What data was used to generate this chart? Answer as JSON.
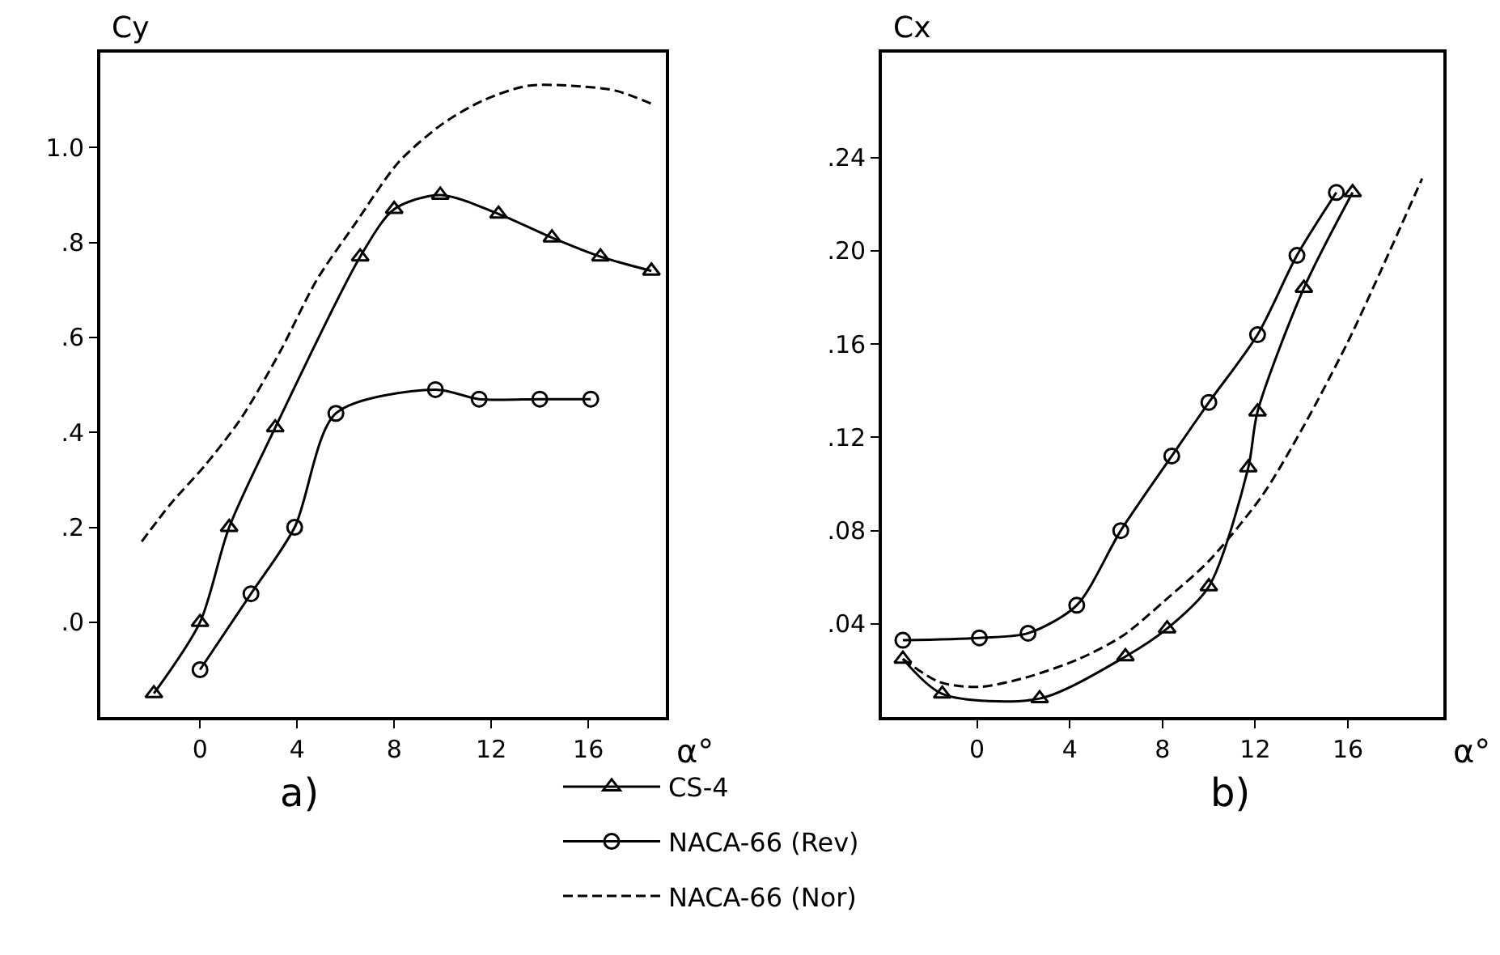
{
  "chart_data": [
    {
      "type": "line",
      "ylabel": "Cy",
      "xlabel": "α°",
      "annotations": [
        "a)"
      ],
      "legend": "bottom",
      "xlim": [
        -4.1,
        19.2
      ],
      "ylim": [
        -0.2,
        1.2
      ],
      "xticks": [
        0,
        4,
        8,
        12,
        16
      ],
      "yticks": [
        {
          "value": 0,
          "label": ".0"
        },
        {
          "value": 0.2,
          "label": ".2"
        },
        {
          "value": 0.4,
          "label": ".4"
        },
        {
          "value": 0.6,
          "label": ".6"
        },
        {
          "value": 0.8,
          "label": ".8"
        },
        {
          "value": 1.0,
          "label": "1.0"
        }
      ],
      "series": [
        {
          "name": "CS-4",
          "color": "#000000",
          "marker": "triangle",
          "line_style": "solid",
          "x": [
            -1.9,
            0,
            1.2,
            3.1,
            6.6,
            8.0,
            9.9,
            12.3,
            14.5,
            16.5,
            18.6
          ],
          "values": [
            -0.15,
            0.0,
            0.2,
            0.41,
            0.77,
            0.87,
            0.9,
            0.86,
            0.81,
            0.77,
            0.74
          ]
        },
        {
          "name": "NACA-66 (Rev)",
          "color": "#000000",
          "marker": "circle",
          "line_style": "solid",
          "x": [
            0,
            2.1,
            3.9,
            5.6,
            9.7,
            11.5,
            14.0,
            16.1
          ],
          "values": [
            -0.1,
            0.06,
            0.2,
            0.44,
            0.49,
            0.47,
            0.47,
            0.47
          ]
        },
        {
          "name": "NACA-66 (Nor)",
          "color": "#000000",
          "marker": "none",
          "line_style": "dashed",
          "x": [
            -2.4,
            -1.2,
            0.2,
            1.7,
            3.3,
            4.8,
            6.4,
            8.2,
            10.0,
            11.7,
            13.5,
            15.3,
            17.1,
            18.7
          ],
          "values": [
            0.17,
            0.25,
            0.33,
            0.43,
            0.57,
            0.72,
            0.84,
            0.97,
            1.05,
            1.1,
            1.13,
            1.13,
            1.12,
            1.09
          ]
        }
      ]
    },
    {
      "type": "line",
      "ylabel": "Cx",
      "xlabel": "α°",
      "annotations": [
        "b)"
      ],
      "legend": "bottom",
      "xlim": [
        -4.1,
        20.1
      ],
      "ylim": [
        0,
        0.285
      ],
      "xticks": [
        0,
        4,
        8,
        12,
        16
      ],
      "yticks": [
        {
          "value": 0.04,
          "label": ".04"
        },
        {
          "value": 0.08,
          "label": ".08"
        },
        {
          "value": 0.12,
          "label": ".12"
        },
        {
          "value": 0.16,
          "label": ".16"
        },
        {
          "value": 0.2,
          "label": ".20"
        },
        {
          "value": 0.24,
          "label": ".24"
        }
      ],
      "series": [
        {
          "name": "CS-4",
          "color": "#000000",
          "marker": "triangle",
          "line_style": "solid",
          "x": [
            -3.2,
            -1.5,
            2.7,
            6.4,
            8.2,
            10.0,
            11.7,
            12.1,
            14.1,
            16.2
          ],
          "values": [
            0.025,
            0.01,
            0.008,
            0.026,
            0.038,
            0.056,
            0.107,
            0.131,
            0.184,
            0.225
          ]
        },
        {
          "name": "NACA-66 (Rev)",
          "color": "#000000",
          "marker": "circle",
          "line_style": "solid",
          "x": [
            -3.2,
            0.1,
            2.2,
            4.3,
            6.2,
            8.4,
            10.0,
            12.1,
            13.8,
            15.5
          ],
          "values": [
            0.033,
            0.034,
            0.036,
            0.048,
            0.08,
            0.112,
            0.135,
            0.164,
            0.198,
            0.225
          ]
        },
        {
          "name": "NACA-66 (Nor)",
          "color": "#000000",
          "marker": "none",
          "line_style": "dashed",
          "x": [
            -3.2,
            -1.6,
            0.1,
            2.1,
            4.4,
            6.3,
            8.1,
            10.0,
            12.3,
            14.1,
            16.0,
            17.4,
            19.2
          ],
          "values": [
            0.025,
            0.015,
            0.013,
            0.017,
            0.025,
            0.035,
            0.05,
            0.067,
            0.095,
            0.125,
            0.161,
            0.191,
            0.231
          ]
        }
      ]
    }
  ]
}
